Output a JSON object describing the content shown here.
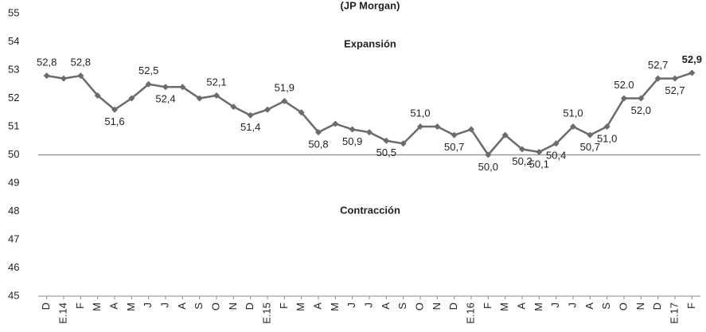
{
  "chart_data": {
    "type": "line",
    "title": "(JP Morgan)",
    "annotations": [
      "Expansión",
      "Contracción"
    ],
    "categories": [
      "D",
      "E.14",
      "F",
      "M",
      "A",
      "M",
      "J",
      "J",
      "A",
      "S",
      "O",
      "N",
      "D",
      "E.15",
      "F",
      "M",
      "A",
      "M",
      "J",
      "J",
      "A",
      "S",
      "O",
      "N",
      "D",
      "E.16",
      "F",
      "M",
      "A",
      "M",
      "J",
      "J",
      "A",
      "S",
      "O",
      "N",
      "D",
      "E.17",
      "F"
    ],
    "series": [
      {
        "color": "#6b6b6b",
        "values": [
          52.8,
          52.7,
          52.8,
          52.1,
          51.6,
          52.0,
          52.5,
          52.4,
          52.4,
          52.0,
          52.1,
          51.7,
          51.4,
          51.6,
          51.9,
          51.5,
          50.8,
          51.1,
          50.9,
          50.8,
          50.5,
          50.4,
          51.0,
          51.0,
          50.7,
          50.9,
          50.0,
          50.7,
          50.2,
          50.1,
          50.4,
          51.0,
          50.7,
          51.0,
          52.0,
          52.0,
          52.7,
          52.7,
          52.9
        ],
        "value_labels": [
          "52,8",
          null,
          "52,8",
          null,
          "51,6",
          null,
          "52,5",
          "52,4",
          null,
          null,
          "52,1",
          null,
          "51,4",
          null,
          "51,9",
          null,
          "50,8",
          null,
          "50,9",
          null,
          "50,5",
          null,
          "51,0",
          null,
          "50,7",
          null,
          "50,0",
          null,
          "50,2",
          "50,1",
          "50,4",
          "51,0",
          "50,7",
          "51,0",
          "52.0",
          "52,0",
          "52,7",
          "52,7",
          "52,9"
        ]
      }
    ],
    "reference_line": 50,
    "ylim": [
      45,
      55
    ],
    "yticks": [
      45,
      46,
      47,
      48,
      49,
      50,
      51,
      52,
      53,
      54,
      55
    ]
  }
}
